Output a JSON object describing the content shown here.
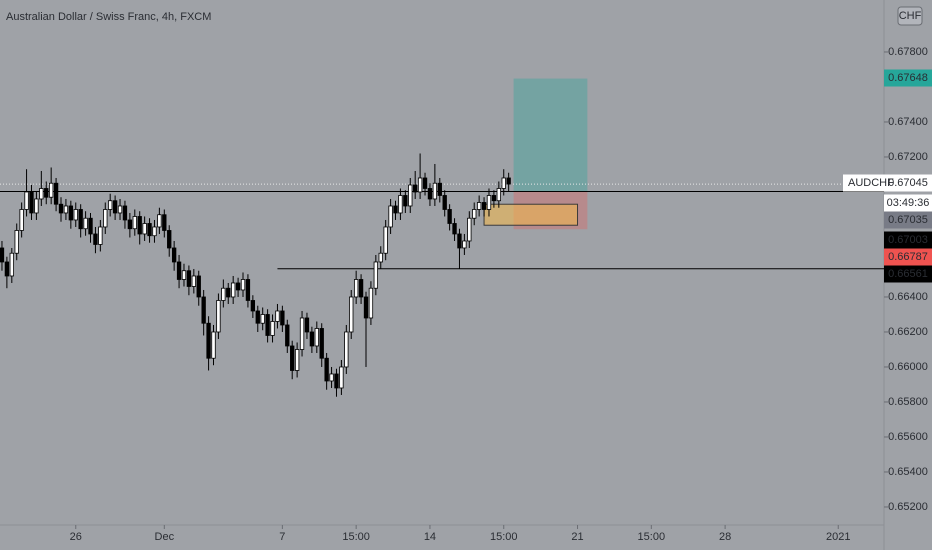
{
  "chart_data": {
    "type": "candlestick",
    "title": "Australian Dollar / Swiss Franc, 4h, FXCM",
    "currency_button": "CHF",
    "background": "#9fa2a7",
    "up_color": "#ffffff",
    "down_color": "#000000",
    "xlim": [
      -0.4,
      179.3
    ],
    "xticks": [
      {
        "value": 15,
        "label": "26"
      },
      {
        "value": 33,
        "label": "Dec"
      },
      {
        "value": 57,
        "label": "7"
      },
      {
        "value": 72,
        "label": "15:00"
      },
      {
        "value": 87,
        "label": "14"
      },
      {
        "value": 102,
        "label": "15:00"
      },
      {
        "value": 117,
        "label": "21"
      },
      {
        "value": 132,
        "label": "15:00"
      },
      {
        "value": 147,
        "label": "28"
      },
      {
        "value": 170,
        "label": "2021"
      }
    ],
    "ylim": [
      0.65097,
      0.68097
    ],
    "yticks": [
      {
        "value": 0.678,
        "label": "0.67800"
      },
      {
        "value": 0.674,
        "label": "0.67400"
      },
      {
        "value": 0.672,
        "label": "0.67200"
      },
      {
        "value": 0.664,
        "label": "0.66400"
      },
      {
        "value": 0.662,
        "label": "0.66200"
      },
      {
        "value": 0.66,
        "label": "0.66000"
      },
      {
        "value": 0.658,
        "label": "0.65800"
      },
      {
        "value": 0.656,
        "label": "0.65600"
      },
      {
        "value": 0.654,
        "label": "0.65400"
      },
      {
        "value": 0.652,
        "label": "0.65200"
      }
    ],
    "series": [
      {
        "name": "AUDCHF",
        "ohlc": [
          [
            0.6668,
            0.6672,
            0.6655,
            0.666
          ],
          [
            0.666,
            0.6663,
            0.6645,
            0.6652
          ],
          [
            0.6652,
            0.6668,
            0.6648,
            0.6665
          ],
          [
            0.6665,
            0.6682,
            0.6661,
            0.6678
          ],
          [
            0.6678,
            0.6694,
            0.6674,
            0.669
          ],
          [
            0.669,
            0.6713,
            0.6686,
            0.67
          ],
          [
            0.67,
            0.6704,
            0.6684,
            0.6688
          ],
          [
            0.6688,
            0.67,
            0.6684,
            0.6696
          ],
          [
            0.6696,
            0.6712,
            0.6692,
            0.6702
          ],
          [
            0.6702,
            0.6706,
            0.6693,
            0.6697
          ],
          [
            0.6697,
            0.6714,
            0.6693,
            0.6705
          ],
          [
            0.6705,
            0.6708,
            0.6689,
            0.6693
          ],
          [
            0.6693,
            0.6697,
            0.6683,
            0.6688
          ],
          [
            0.6688,
            0.6696,
            0.6684,
            0.6692
          ],
          [
            0.6692,
            0.6695,
            0.6679,
            0.6684
          ],
          [
            0.6684,
            0.6694,
            0.668,
            0.669
          ],
          [
            0.669,
            0.6693,
            0.6674,
            0.6679
          ],
          [
            0.6679,
            0.6689,
            0.6675,
            0.6685
          ],
          [
            0.6685,
            0.6688,
            0.6671,
            0.6676
          ],
          [
            0.6676,
            0.668,
            0.6665,
            0.667
          ],
          [
            0.667,
            0.6684,
            0.6666,
            0.668
          ],
          [
            0.668,
            0.6694,
            0.6676,
            0.669
          ],
          [
            0.669,
            0.6699,
            0.6686,
            0.6695
          ],
          [
            0.6695,
            0.6698,
            0.6684,
            0.6688
          ],
          [
            0.6688,
            0.6696,
            0.6684,
            0.6692
          ],
          [
            0.6692,
            0.6695,
            0.6679,
            0.6684
          ],
          [
            0.6684,
            0.6688,
            0.6674,
            0.6679
          ],
          [
            0.6679,
            0.669,
            0.6675,
            0.6686
          ],
          [
            0.6686,
            0.6689,
            0.667,
            0.6676
          ],
          [
            0.6676,
            0.6686,
            0.6672,
            0.6682
          ],
          [
            0.6682,
            0.6685,
            0.6671,
            0.6675
          ],
          [
            0.6675,
            0.6684,
            0.6671,
            0.668
          ],
          [
            0.668,
            0.6691,
            0.6676,
            0.6687
          ],
          [
            0.6687,
            0.669,
            0.6674,
            0.6678
          ],
          [
            0.6678,
            0.6681,
            0.6663,
            0.6668
          ],
          [
            0.6668,
            0.6672,
            0.6655,
            0.666
          ],
          [
            0.666,
            0.6664,
            0.6645,
            0.665
          ],
          [
            0.665,
            0.6659,
            0.6646,
            0.6655
          ],
          [
            0.6655,
            0.6658,
            0.6641,
            0.6646
          ],
          [
            0.6646,
            0.6656,
            0.6642,
            0.6652
          ],
          [
            0.6652,
            0.6655,
            0.6635,
            0.664
          ],
          [
            0.664,
            0.6644,
            0.6618,
            0.6625
          ],
          [
            0.6625,
            0.6629,
            0.6598,
            0.6605
          ],
          [
            0.6605,
            0.6624,
            0.6601,
            0.662
          ],
          [
            0.662,
            0.6642,
            0.6616,
            0.6638
          ],
          [
            0.6638,
            0.665,
            0.6634,
            0.6645
          ],
          [
            0.6645,
            0.6648,
            0.6636,
            0.664
          ],
          [
            0.664,
            0.6652,
            0.6636,
            0.6648
          ],
          [
            0.6648,
            0.6651,
            0.664,
            0.6644
          ],
          [
            0.6644,
            0.6654,
            0.664,
            0.665
          ],
          [
            0.665,
            0.6653,
            0.6634,
            0.6638
          ],
          [
            0.6638,
            0.6641,
            0.6628,
            0.6632
          ],
          [
            0.6632,
            0.6635,
            0.662,
            0.6625
          ],
          [
            0.6625,
            0.6634,
            0.6621,
            0.663
          ],
          [
            0.663,
            0.6633,
            0.6614,
            0.6618
          ],
          [
            0.6618,
            0.663,
            0.6614,
            0.6626
          ],
          [
            0.6626,
            0.6636,
            0.6622,
            0.6632
          ],
          [
            0.6632,
            0.6635,
            0.662,
            0.6624
          ],
          [
            0.6624,
            0.6627,
            0.6608,
            0.6612
          ],
          [
            0.6612,
            0.6615,
            0.6593,
            0.6598
          ],
          [
            0.6598,
            0.6614,
            0.6594,
            0.661
          ],
          [
            0.661,
            0.6632,
            0.6606,
            0.6628
          ],
          [
            0.6628,
            0.6631,
            0.6616,
            0.662
          ],
          [
            0.662,
            0.6623,
            0.6608,
            0.6612
          ],
          [
            0.6612,
            0.6626,
            0.6608,
            0.6622
          ],
          [
            0.6622,
            0.6625,
            0.66,
            0.6605
          ],
          [
            0.6605,
            0.6608,
            0.6587,
            0.6592
          ],
          [
            0.6592,
            0.66,
            0.6588,
            0.6596
          ],
          [
            0.6596,
            0.6599,
            0.6583,
            0.6588
          ],
          [
            0.6588,
            0.6604,
            0.6584,
            0.66
          ],
          [
            0.66,
            0.6624,
            0.6596,
            0.662
          ],
          [
            0.662,
            0.6644,
            0.6616,
            0.664
          ],
          [
            0.664,
            0.6655,
            0.6636,
            0.665
          ],
          [
            0.665,
            0.6653,
            0.6636,
            0.664
          ],
          [
            0.664,
            0.6643,
            0.66,
            0.6628
          ],
          [
            0.6628,
            0.6649,
            0.6624,
            0.6645
          ],
          [
            0.6645,
            0.6664,
            0.6641,
            0.666
          ],
          [
            0.666,
            0.6669,
            0.6656,
            0.6665
          ],
          [
            0.6665,
            0.6684,
            0.6661,
            0.668
          ],
          [
            0.668,
            0.6696,
            0.6676,
            0.6692
          ],
          [
            0.6692,
            0.6695,
            0.6684,
            0.6688
          ],
          [
            0.6688,
            0.6702,
            0.6684,
            0.6698
          ],
          [
            0.6698,
            0.6701,
            0.6688,
            0.6692
          ],
          [
            0.6692,
            0.6708,
            0.6688,
            0.6704
          ],
          [
            0.6704,
            0.6712,
            0.6696,
            0.67
          ],
          [
            0.67,
            0.6722,
            0.6696,
            0.6708
          ],
          [
            0.6708,
            0.6711,
            0.6698,
            0.6702
          ],
          [
            0.6702,
            0.6705,
            0.6692,
            0.6696
          ],
          [
            0.6696,
            0.6716,
            0.6692,
            0.6705
          ],
          [
            0.6705,
            0.6708,
            0.6694,
            0.6698
          ],
          [
            0.6698,
            0.6701,
            0.6686,
            0.669
          ],
          [
            0.669,
            0.6693,
            0.6678,
            0.6682
          ],
          [
            0.6682,
            0.6685,
            0.6672,
            0.6676
          ],
          [
            0.6676,
            0.6679,
            0.6656,
            0.6668
          ],
          [
            0.6668,
            0.6676,
            0.6664,
            0.6672
          ],
          [
            0.6672,
            0.6689,
            0.6668,
            0.6685
          ],
          [
            0.6685,
            0.6694,
            0.6681,
            0.669
          ],
          [
            0.669,
            0.6698,
            0.6686,
            0.6694
          ],
          [
            0.6694,
            0.6697,
            0.6686,
            0.669
          ],
          [
            0.669,
            0.6702,
            0.6686,
            0.6698
          ],
          [
            0.6698,
            0.6701,
            0.6691,
            0.6695
          ],
          [
            0.6695,
            0.6706,
            0.6691,
            0.6702
          ],
          [
            0.6702,
            0.6713,
            0.6698,
            0.6708
          ],
          [
            0.6708,
            0.6711,
            0.67,
            0.67045
          ]
        ]
      }
    ],
    "hlines": [
      {
        "value": 0.67003,
        "start": -0.4
      },
      {
        "value": 0.66561,
        "start": 56
      }
    ],
    "long_position": {
      "target": 0.67648,
      "entry": 0.67003,
      "stop": 0.66787,
      "start": 104,
      "end": 119
    },
    "rectangle": {
      "top": 0.6693,
      "bottom": 0.6681,
      "start": 98,
      "end": 117
    },
    "last_price": 0.67045,
    "price_labels": [
      {
        "label": "0.67648",
        "color": "#26a69a",
        "text_color": "#ffffff"
      },
      {
        "symbol": "AUDCHF",
        "label": "0.67045",
        "color": "#ffffff",
        "text_color": "#131722"
      },
      {
        "label": "03:49:36",
        "color": "#ffffff",
        "text_color": "#131722"
      },
      {
        "label": "0.67035",
        "color": "#787b86",
        "text_color": "#ffffff"
      },
      {
        "label": "0.67003",
        "color": "#000000",
        "text_color": "#ffffff"
      },
      {
        "label": "0.66787",
        "color": "#ef5350",
        "text_color": "#ffffff"
      },
      {
        "label": "0.66561",
        "color": "#000000",
        "text_color": "#ffffff"
      }
    ]
  }
}
